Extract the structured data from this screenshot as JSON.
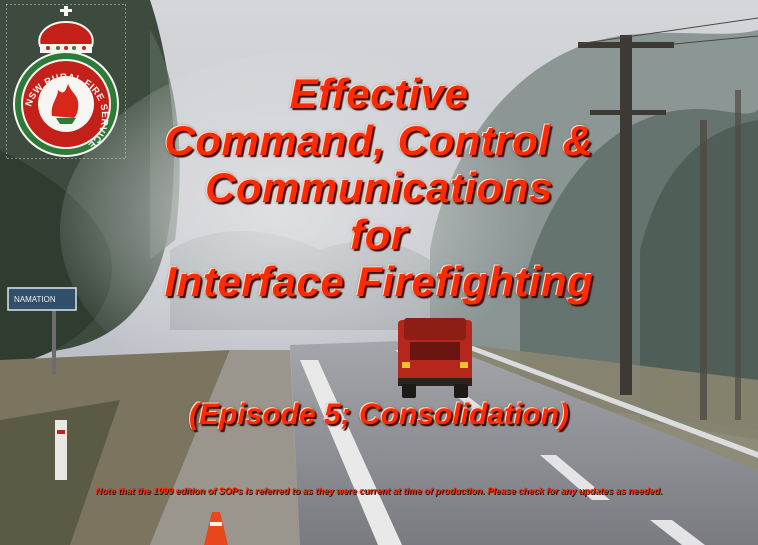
{
  "logo": {
    "text": "NSW RURAL FIRE SERVICE",
    "icon": "nsw-rfs-crest-icon"
  },
  "roadsign": {
    "text": "NAMATION"
  },
  "title": {
    "line1": "Effective",
    "line2": "Command, Control &",
    "line3": "Communications",
    "line4": "for",
    "line5": "Interface Firefighting"
  },
  "subtitle": "(Episode 5; Consolidation)",
  "note": "Note that the 1999 edition of SOPs is referred to as they were current at time of production.  Please check for any updates as needed.",
  "colors": {
    "title": "#ff2a00",
    "sky": "#cfd2d6",
    "road": "#8d8e93"
  }
}
